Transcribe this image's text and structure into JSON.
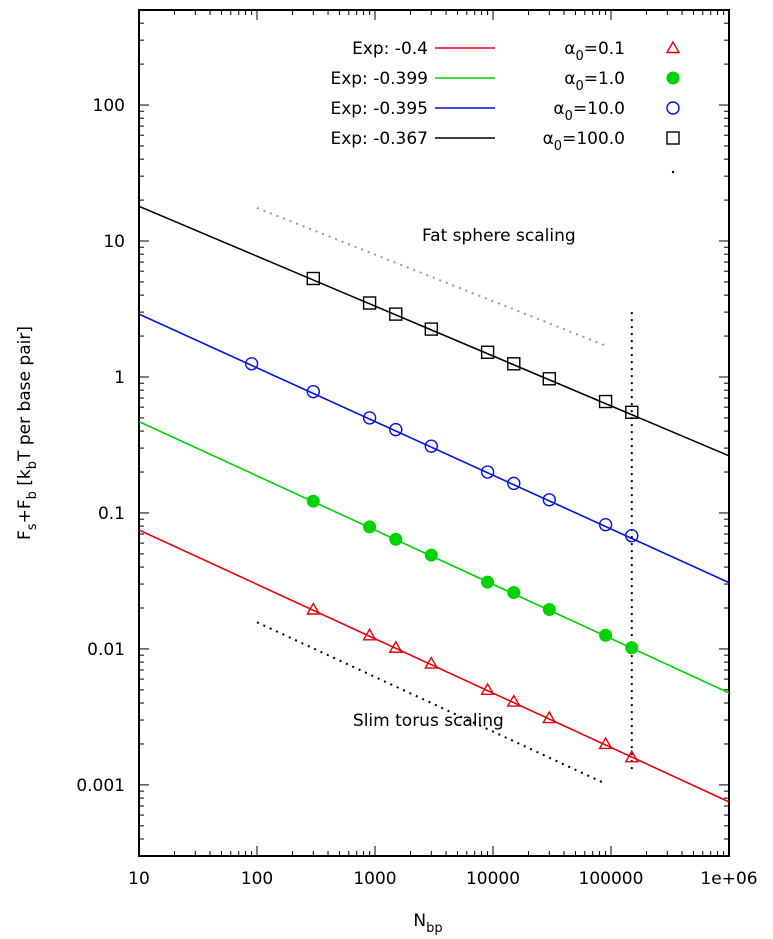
{
  "chart_data": {
    "type": "scatter",
    "xscale": "log",
    "yscale": "log",
    "xlim": [
      10,
      1000000
    ],
    "ylim": [
      0.0003,
      500
    ],
    "xticks": [
      10,
      100,
      1000,
      10000,
      100000,
      1000000
    ],
    "xtick_labels": [
      "10",
      "100",
      "1000",
      "10000",
      "100000",
      "1e+06"
    ],
    "yticks": [
      0.001,
      0.01,
      0.1,
      1,
      10,
      100
    ],
    "ytick_labels": [
      "0.001",
      "0.01",
      "0.1",
      "1",
      "10",
      "100"
    ],
    "xlabel": {
      "main": "N",
      "sub": "bp"
    },
    "ylabel": {
      "p1": "F",
      "s1": "s",
      "p2": "+F",
      "s2": "b",
      "p3": " [k",
      "s3": "b",
      "p4": "T per base pair]"
    },
    "grid": false,
    "legend_position": "top-right",
    "series": [
      {
        "fit_label": "Exp: -0.4",
        "points_label": {
          "sym": "α",
          "sub": "0",
          "val": "=0.1"
        },
        "exponent": -0.4,
        "color": "#e8000b",
        "marker": "triangle",
        "fit_at_10": 0.075,
        "x": [
          300,
          900,
          1500,
          3000,
          9000,
          15000,
          30000,
          90000,
          150000
        ],
        "y": [
          0.0195,
          0.0126,
          0.0102,
          0.0078,
          0.005,
          0.0041,
          0.0031,
          0.002,
          0.0016
        ]
      },
      {
        "fit_label": "Exp: -0.399",
        "points_label": {
          "sym": "α",
          "sub": "0",
          "val": "=1.0"
        },
        "exponent": -0.399,
        "color": "#00d100",
        "marker": "filled-circle",
        "fit_at_10": 0.47,
        "x": [
          300,
          900,
          1500,
          3000,
          9000,
          15000,
          30000,
          90000,
          150000
        ],
        "y": [
          0.122,
          0.079,
          0.064,
          0.049,
          0.031,
          0.026,
          0.0195,
          0.0126,
          0.0102
        ]
      },
      {
        "fit_label": "Exp: -0.395",
        "points_label": {
          "sym": "α",
          "sub": "0",
          "val": "=10.0"
        },
        "exponent": -0.395,
        "color": "#0012e0",
        "marker": "open-circle",
        "fit_at_10": 2.9,
        "x": [
          90,
          300,
          900,
          1500,
          3000,
          9000,
          15000,
          30000,
          90000,
          150000
        ],
        "y": [
          1.25,
          0.78,
          0.5,
          0.41,
          0.31,
          0.2,
          0.165,
          0.125,
          0.082,
          0.068
        ]
      },
      {
        "fit_label": "Exp: -0.367",
        "points_label": {
          "sym": "α",
          "sub": "0",
          "val": "=100.0"
        },
        "exponent": -0.367,
        "color": "#000000",
        "marker": "square",
        "fit_at_10": 18.0,
        "x": [
          300,
          900,
          1500,
          3000,
          9000,
          15000,
          30000,
          90000,
          150000
        ],
        "y": [
          5.3,
          3.5,
          2.9,
          2.25,
          1.52,
          1.25,
          0.97,
          0.66,
          0.55
        ]
      }
    ],
    "annotations": [
      {
        "text": "Fat sphere scaling",
        "x": 2500,
        "y": 10
      },
      {
        "text": "Slim torus scaling",
        "x": 650,
        "y": 0.0027
      }
    ],
    "guide_lines": [
      {
        "name": "fat-sphere-guide",
        "color": "#999999",
        "x": [
          100,
          90000
        ],
        "y": [
          17.5,
          1.7
        ]
      },
      {
        "name": "slim-torus-guide",
        "color": "#000000",
        "x": [
          100,
          90000
        ],
        "y": [
          0.0157,
          0.00102
        ]
      },
      {
        "name": "vertical-guide",
        "color": "#000000",
        "x": [
          150000,
          150000
        ],
        "y": [
          3.0,
          0.0013
        ]
      }
    ],
    "legend_extra_marker": "dot"
  }
}
